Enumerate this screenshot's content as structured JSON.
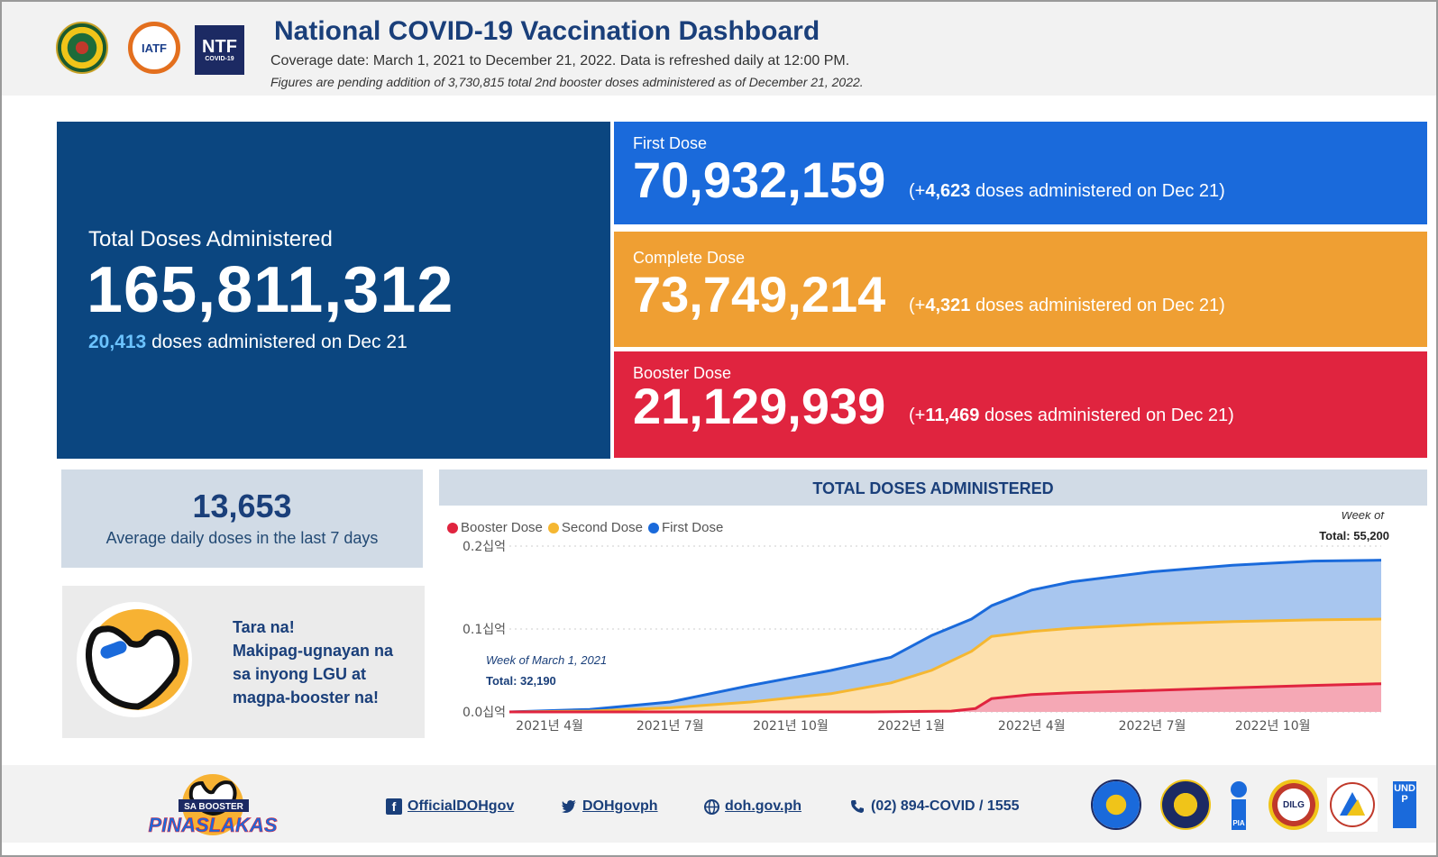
{
  "header": {
    "title": "National COVID-19 Vaccination Dashboard",
    "coverage": "Coverage date: March 1, 2021 to December 21, 2022. Data is refreshed daily at 12:00 PM.",
    "note": "Figures are pending addition of 3,730,815 total 2nd booster doses administered as of December 21, 2022.",
    "logos": {
      "iatf": "IATF",
      "ntf_big": "NTF",
      "ntf_small": "COVID-19"
    }
  },
  "total": {
    "label": "Total Doses Administered",
    "value": "165,811,312",
    "daily_value": "20,413",
    "daily_text": "doses administered on Dec 21"
  },
  "first_dose": {
    "label": "First Dose",
    "value": "70,932,159",
    "delta_open": "(+",
    "delta": "4,623",
    "delta_text": "doses administered on Dec 21)"
  },
  "complete_dose": {
    "label": "Complete Dose",
    "value": "73,749,214",
    "delta_open": "(+",
    "delta": "4,321",
    "delta_text": "doses administered on Dec 21)"
  },
  "booster_dose": {
    "label": "Booster Dose",
    "value": "21,129,939",
    "delta_open": "(+",
    "delta": "11,469",
    "delta_text": "doses administered on Dec 21)"
  },
  "average": {
    "value": "13,653",
    "label": "Average daily doses in the last 7 days"
  },
  "promo": {
    "line1": "Tara na!",
    "line2": "Makipag-ugnayan na",
    "line3": "sa inyong LGU at",
    "line4": "magpa-booster na!"
  },
  "chart_data": {
    "type": "area",
    "title": "TOTAL DOSES ADMINISTERED",
    "legend": [
      "Booster Dose",
      "Second Dose",
      "First Dose"
    ],
    "colors": {
      "booster": "#e0243f",
      "second": "#f5b731",
      "first": "#1a6adb",
      "booster_fill": "#f5a8b5",
      "second_fill": "#fde0ad",
      "first_fill": "#a8c6ef"
    },
    "y_ticks": [
      "0.0십억",
      "0.1십억",
      "0.2십억"
    ],
    "ylim": [
      0,
      0.2
    ],
    "x_ticks": [
      "2021년 4월",
      "2021년 7월",
      "2021년 10월",
      "2022년 1월",
      "2022년 4월",
      "2022년 7월",
      "2022년 10월"
    ],
    "x_tick_months": [
      1.0,
      4.0,
      7.0,
      10.0,
      13.0,
      16.0,
      19.0
    ],
    "x_range_months": [
      0,
      21.7
    ],
    "series": [
      {
        "name": "First Dose (cumulative total)",
        "months": [
          0,
          2,
          4,
          6,
          8,
          9.5,
          10.5,
          11.5,
          12,
          13,
          14,
          16,
          18,
          20,
          21.7
        ],
        "values": [
          0,
          0.003,
          0.012,
          0.032,
          0.05,
          0.066,
          0.092,
          0.112,
          0.128,
          0.147,
          0.157,
          0.169,
          0.177,
          0.182,
          0.183
        ]
      },
      {
        "name": "Second Dose (cumulative total)",
        "months": [
          0,
          2,
          4,
          6,
          8,
          9.5,
          10.5,
          11.5,
          12,
          13,
          14,
          16,
          18,
          20,
          21.7
        ],
        "values": [
          0,
          0.001,
          0.005,
          0.012,
          0.022,
          0.035,
          0.05,
          0.073,
          0.091,
          0.097,
          0.101,
          0.106,
          0.109,
          0.111,
          0.112
        ]
      },
      {
        "name": "Booster Dose (cumulative)",
        "months": [
          0,
          9,
          11,
          11.6,
          12,
          13,
          14,
          16,
          18,
          20,
          21.7
        ],
        "values": [
          0,
          0,
          0.001,
          0.004,
          0.016,
          0.021,
          0.023,
          0.026,
          0.029,
          0.032,
          0.034
        ]
      }
    ],
    "annotation_start": {
      "title": "Week of March 1, 2021",
      "total": "Total: 32,190"
    },
    "annotation_end": {
      "title": "Week of",
      "total": "Total: 55,200"
    }
  },
  "footer": {
    "facebook": "OfficialDOHgov",
    "twitter": "DOHgovph",
    "website": "doh.gov.ph",
    "phone": "(02) 894-COVID / 1555",
    "booster_logo_top": "SA BOOSTER",
    "booster_logo_main": "PINASLAKAS",
    "seal_pia": "PIA",
    "seal_dilg": "DILG",
    "seal_undp": "UNDP"
  }
}
